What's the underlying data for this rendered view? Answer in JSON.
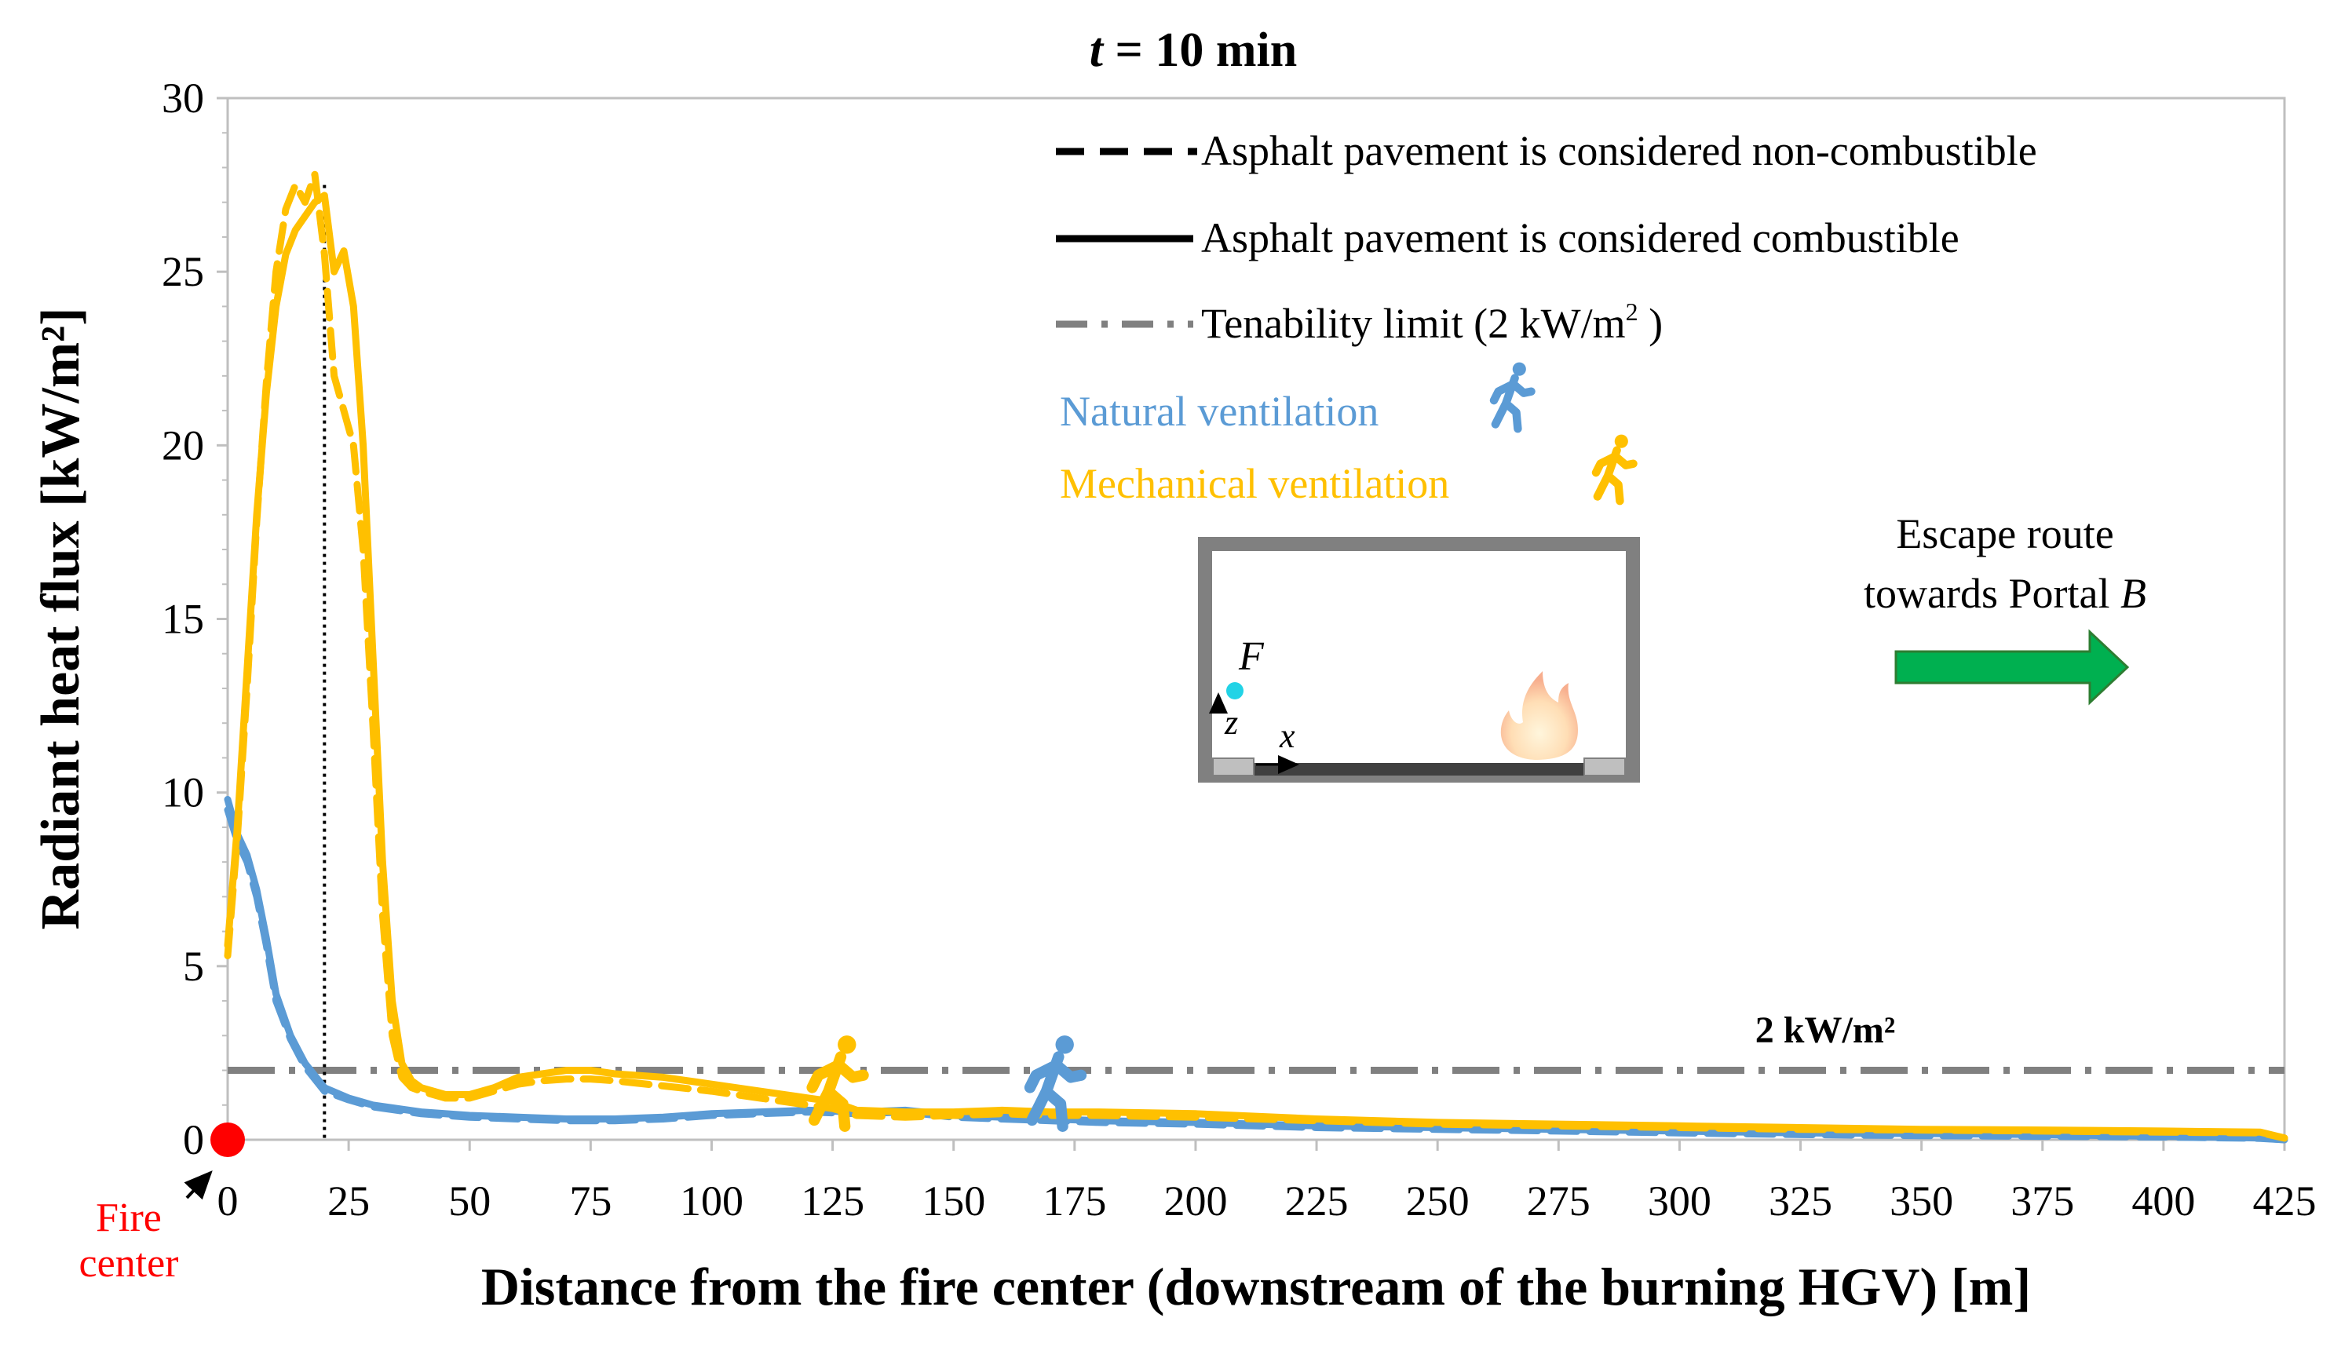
{
  "chart_data": {
    "type": "line",
    "title_prefix": "t",
    "title_suffix": " = 10 min",
    "xlabel": "Distance from the fire center (downstream of the burning HGV) [m]",
    "ylabel": "Radiant heat flux [kW/m²]",
    "xlim": [
      0,
      425
    ],
    "ylim": [
      0,
      30
    ],
    "x_ticks": [
      0,
      25,
      50,
      75,
      100,
      125,
      150,
      175,
      200,
      225,
      250,
      275,
      300,
      325,
      350,
      375,
      400,
      425
    ],
    "y_ticks": [
      0,
      5,
      10,
      15,
      20,
      25,
      30
    ],
    "grid": false,
    "colors": {
      "natural": "#5b9bd5",
      "mechanical": "#ffc000",
      "limit": "#808080",
      "fire": "#ff0000",
      "arrow": "#00b050"
    },
    "legend": {
      "dashed": "Asphalt pavement is considered non-combustible",
      "solid": "Asphalt pavement is considered combustible",
      "limit_prefix": "Tenability limit (2 kW/m",
      "limit_sup": "2",
      "limit_suffix": " )",
      "natural": "Natural ventilation",
      "mechanical": "Mechanical ventilation"
    },
    "limit_value": 2,
    "limit_label": "2 kW/m²",
    "fire_center_label_1": "Fire",
    "fire_center_label_2": "center",
    "escape_label_1": "Escape route",
    "escape_label_2_prefix": "towards Portal ",
    "escape_label_2_italic": "B",
    "inset": {
      "point_label": "F",
      "z_label": "z",
      "x_label": "x"
    },
    "series": [
      {
        "name": "Natural ventilation",
        "ventilation": "natural",
        "style": "solid",
        "x": [
          0,
          2,
          4,
          6,
          8,
          10,
          13,
          16,
          20,
          25,
          30,
          40,
          50,
          60,
          70,
          80,
          90,
          100,
          110,
          120,
          130,
          140,
          150,
          160,
          170,
          180,
          200,
          225,
          250,
          275,
          300,
          325,
          350,
          375,
          400,
          420,
          425
        ],
        "y": [
          9.8,
          8.8,
          8.2,
          7.2,
          5.8,
          4.2,
          3.0,
          2.2,
          1.5,
          1.2,
          1.0,
          0.8,
          0.7,
          0.65,
          0.6,
          0.6,
          0.65,
          0.75,
          0.8,
          0.85,
          0.8,
          0.85,
          0.7,
          0.65,
          0.6,
          0.55,
          0.5,
          0.4,
          0.35,
          0.3,
          0.25,
          0.2,
          0.18,
          0.15,
          0.1,
          0.05,
          0.0
        ]
      },
      {
        "name": "Natural ventilation",
        "ventilation": "natural",
        "style": "dashed",
        "x": [
          0,
          2,
          4,
          6,
          8,
          10,
          13,
          16,
          20,
          25,
          30,
          40,
          50,
          60,
          70,
          80,
          90,
          100,
          110,
          120,
          130,
          140,
          150,
          160,
          170,
          180,
          200,
          225,
          250,
          275,
          300,
          325,
          350,
          375,
          400,
          420,
          425
        ],
        "y": [
          9.5,
          8.6,
          8.0,
          7.0,
          5.6,
          4.0,
          2.9,
          2.1,
          1.4,
          1.15,
          0.95,
          0.75,
          0.65,
          0.6,
          0.55,
          0.55,
          0.6,
          0.7,
          0.75,
          0.8,
          0.75,
          0.8,
          0.65,
          0.6,
          0.55,
          0.5,
          0.45,
          0.35,
          0.3,
          0.25,
          0.2,
          0.15,
          0.12,
          0.1,
          0.08,
          0.04,
          0.0
        ]
      },
      {
        "name": "Mechanical ventilation",
        "ventilation": "mechanical",
        "style": "solid",
        "x": [
          0,
          2,
          4,
          6,
          8,
          10,
          12,
          14,
          16,
          18,
          20,
          22,
          24,
          26,
          28,
          30,
          32,
          34,
          36,
          38,
          40,
          45,
          50,
          55,
          60,
          65,
          70,
          75,
          80,
          90,
          100,
          110,
          120,
          125,
          130,
          140,
          150,
          160,
          170,
          180,
          200,
          225,
          250,
          275,
          300,
          325,
          350,
          375,
          400,
          420,
          425
        ],
        "y": [
          5.6,
          9.0,
          13.5,
          18.0,
          21.5,
          24.0,
          25.5,
          26.2,
          26.6,
          27.0,
          27.2,
          25.0,
          25.6,
          24.0,
          20.0,
          14.0,
          8.0,
          4.0,
          2.2,
          1.7,
          1.5,
          1.3,
          1.3,
          1.5,
          1.8,
          1.9,
          2.0,
          2.0,
          1.9,
          1.8,
          1.6,
          1.4,
          1.2,
          1.1,
          0.85,
          0.8,
          0.8,
          0.85,
          0.8,
          0.8,
          0.75,
          0.6,
          0.5,
          0.45,
          0.4,
          0.35,
          0.3,
          0.28,
          0.25,
          0.22,
          0.05
        ]
      },
      {
        "name": "Mechanical ventilation",
        "ventilation": "mechanical",
        "style": "dashed",
        "x": [
          0,
          2,
          4,
          6,
          8,
          10,
          12,
          14,
          16,
          18,
          20,
          22,
          24,
          26,
          28,
          30,
          32,
          34,
          36,
          38,
          40,
          45,
          50,
          55,
          60,
          65,
          70,
          75,
          80,
          90,
          100,
          110,
          120,
          125,
          130,
          140,
          150,
          160,
          170,
          180,
          200,
          225,
          250,
          275,
          300,
          325,
          350,
          375,
          400,
          420,
          425
        ],
        "y": [
          5.3,
          8.7,
          13.0,
          17.8,
          21.8,
          25.0,
          26.8,
          27.5,
          27.0,
          27.8,
          25.5,
          22.0,
          21.0,
          20.0,
          17.0,
          12.0,
          6.5,
          3.0,
          1.8,
          1.5,
          1.4,
          1.2,
          1.2,
          1.4,
          1.6,
          1.7,
          1.75,
          1.75,
          1.7,
          1.55,
          1.4,
          1.2,
          1.0,
          0.9,
          0.7,
          0.65,
          0.7,
          0.75,
          0.7,
          0.7,
          0.65,
          0.55,
          0.45,
          0.4,
          0.35,
          0.3,
          0.28,
          0.25,
          0.22,
          0.2,
          0.05
        ]
      }
    ],
    "markers": {
      "reference_line_x": 20,
      "mechanical_person_x": 125,
      "natural_person_x": 170
    }
  }
}
